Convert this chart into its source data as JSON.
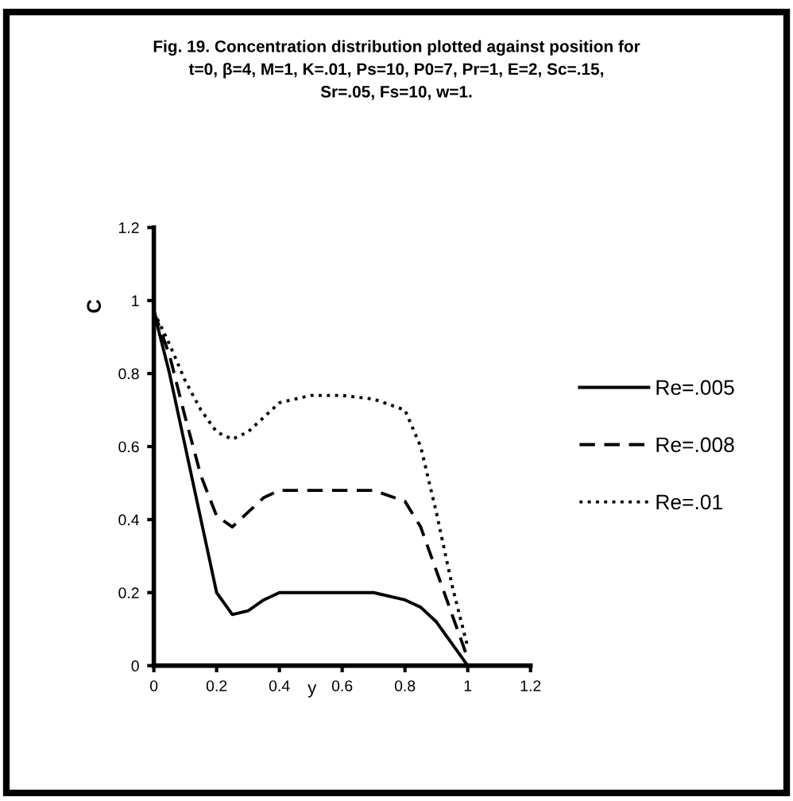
{
  "chart_data": {
    "type": "line",
    "title": "Fig. 19. Concentration distribution plotted against position for\nt=0, β=4, M=1, K=.01, Ps=10, P0=7, Pr=1, E=2, Sc=.15,\nSr=.05, Fs=10, w=1.",
    "xlabel": "y",
    "ylabel": "C",
    "xlim": [
      0,
      1.2
    ],
    "ylim": [
      0,
      1.2
    ],
    "xticks": [
      0,
      0.2,
      0.4,
      0.6,
      0.8,
      1,
      1.2
    ],
    "yticks": [
      0,
      0.2,
      0.4,
      0.6,
      0.8,
      1,
      1.2
    ],
    "grid": false,
    "legend": "right",
    "marker": "none",
    "series": [
      {
        "name": "Re=.005",
        "color": "#000000",
        "line_style": "solid",
        "x": [
          0,
          0.05,
          0.1,
          0.15,
          0.2,
          0.25,
          0.3,
          0.35,
          0.4,
          0.5,
          0.6,
          0.7,
          0.8,
          0.85,
          0.9,
          0.95,
          1
        ],
        "values": [
          0.97,
          0.8,
          0.6,
          0.4,
          0.2,
          0.14,
          0.15,
          0.18,
          0.2,
          0.2,
          0.2,
          0.2,
          0.18,
          0.16,
          0.12,
          0.06,
          0
        ]
      },
      {
        "name": "Re=.008",
        "color": "#000000",
        "line_style": "dashed",
        "x": [
          0,
          0.05,
          0.1,
          0.15,
          0.2,
          0.25,
          0.3,
          0.35,
          0.4,
          0.5,
          0.6,
          0.7,
          0.8,
          0.85,
          0.9,
          0.95,
          1
        ],
        "values": [
          0.97,
          0.85,
          0.68,
          0.52,
          0.41,
          0.38,
          0.42,
          0.46,
          0.48,
          0.48,
          0.48,
          0.48,
          0.45,
          0.38,
          0.26,
          0.14,
          0.02
        ]
      },
      {
        "name": "Re=.01",
        "color": "#000000",
        "line_style": "dotted",
        "x": [
          0,
          0.05,
          0.1,
          0.15,
          0.2,
          0.25,
          0.3,
          0.35,
          0.4,
          0.45,
          0.5,
          0.6,
          0.7,
          0.8,
          0.85,
          0.9,
          0.95,
          1
        ],
        "values": [
          0.97,
          0.88,
          0.78,
          0.7,
          0.64,
          0.62,
          0.64,
          0.68,
          0.72,
          0.73,
          0.74,
          0.74,
          0.73,
          0.7,
          0.6,
          0.42,
          0.22,
          0.05
        ]
      }
    ]
  }
}
